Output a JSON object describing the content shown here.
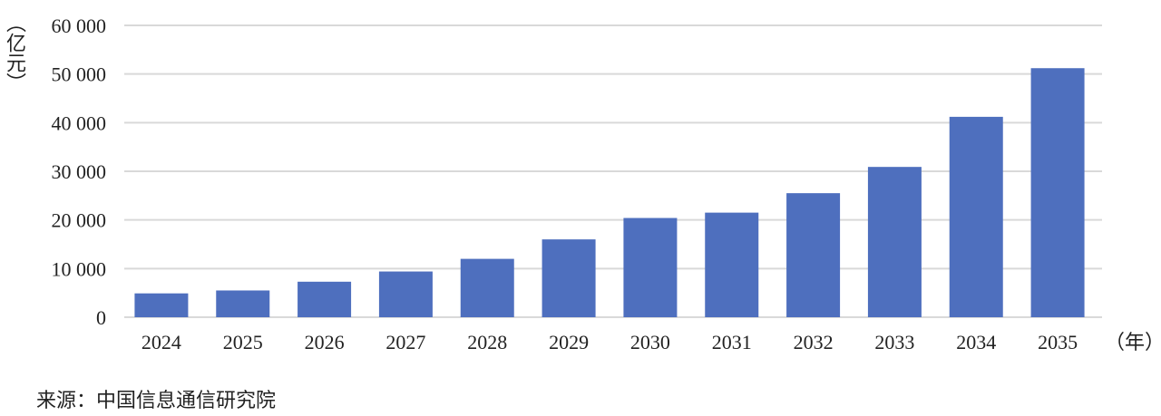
{
  "chart_data": {
    "type": "bar",
    "categories": [
      "2024",
      "2025",
      "2026",
      "2027",
      "2028",
      "2029",
      "2030",
      "2031",
      "2032",
      "2033",
      "2034",
      "2035"
    ],
    "values": [
      4900,
      5500,
      7300,
      9400,
      12000,
      16000,
      20400,
      21500,
      25500,
      30900,
      41200,
      51200
    ],
    "ylabel": "（亿元）",
    "xlabel": "（年）",
    "ylim": [
      0,
      60000
    ],
    "yticks": [
      0,
      10000,
      20000,
      30000,
      40000,
      50000,
      60000
    ],
    "ytick_labels": [
      "0",
      "10 000",
      "20 000",
      "30 000",
      "40 000",
      "50 000",
      "60 000"
    ],
    "grid": true,
    "bar_color": "#4e6fbe",
    "grid_color": "#d9d9d9"
  },
  "source": "来源：中国信息通信研究院"
}
